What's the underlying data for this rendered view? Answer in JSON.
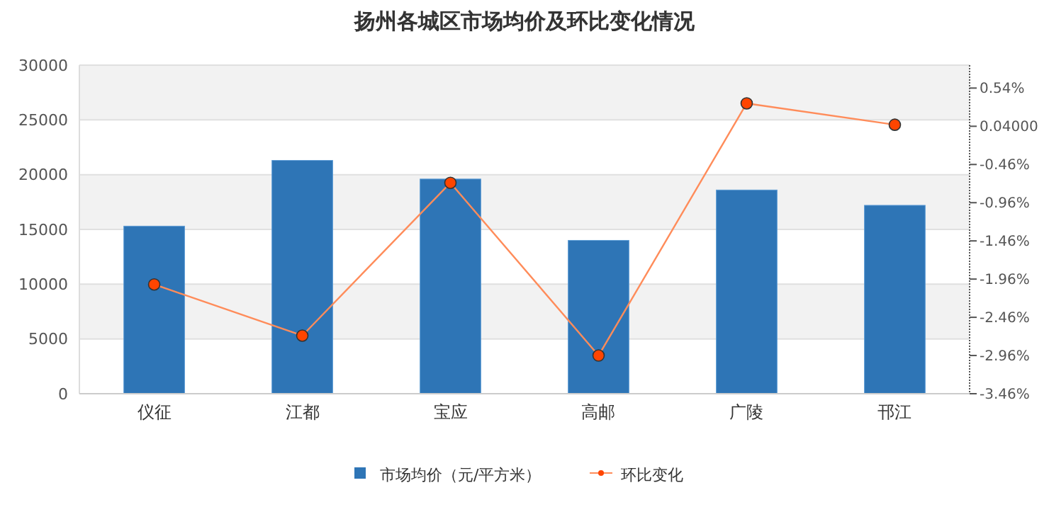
{
  "chart_data": {
    "type": "bar",
    "title": "扬州各城区市场均价及环比变化情况",
    "categories": [
      "仪征",
      "江都",
      "宝应",
      "高邮",
      "广陵",
      "邗江"
    ],
    "series": [
      {
        "name": "市场均价（元/平方米）",
        "color": "#2e75b6",
        "values": [
          15300,
          21300,
          19600,
          14000,
          18600,
          17200
        ]
      },
      {
        "name": "环比变化",
        "type": "line",
        "axis": "y2",
        "color": "#ff8c5a",
        "marker": "circle",
        "values": [
          -2.03,
          -2.7,
          -0.7,
          -2.96,
          0.34,
          0.06
        ]
      }
    ],
    "ylim": [
      0,
      30000
    ],
    "yticks": [
      0,
      5000,
      10000,
      15000,
      20000,
      25000,
      30000
    ],
    "y2lim": [
      -3.46,
      0.84
    ],
    "y2ticks": [
      {
        "value": -3.46,
        "label": "-3.46%"
      },
      {
        "value": -2.96,
        "label": "-2.96%"
      },
      {
        "value": -2.46,
        "label": "-2.46%"
      },
      {
        "value": -1.96,
        "label": "-1.96%"
      },
      {
        "value": -1.46,
        "label": "-1.46%"
      },
      {
        "value": -0.96,
        "label": "-0.96%"
      },
      {
        "value": -0.46,
        "label": "-0.46%"
      },
      {
        "value": 0.04,
        "label": "0.04000"
      },
      {
        "value": 0.54,
        "label": "0.54%"
      }
    ],
    "grid": "y",
    "legend": "bottom"
  }
}
